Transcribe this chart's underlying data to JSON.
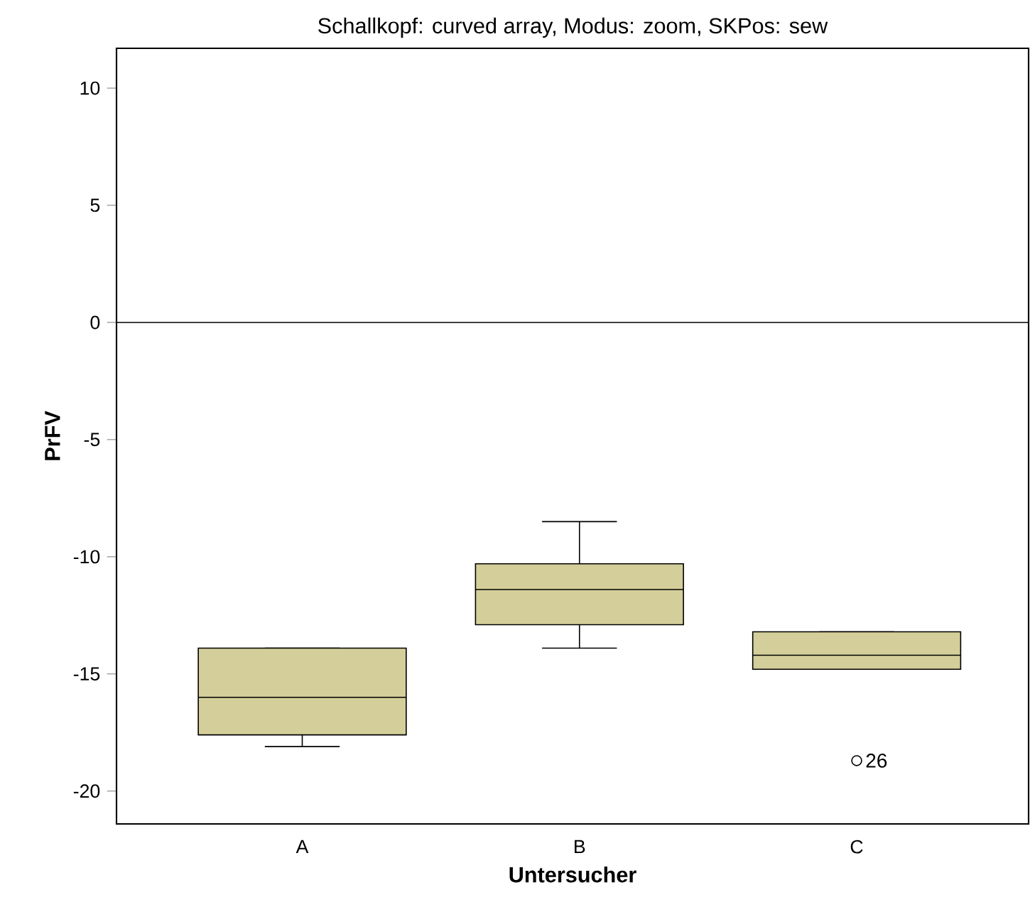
{
  "chart_data": {
    "type": "box",
    "title": "Schallkopf: curved array, Modus: zoom, SKPos: sew",
    "xlabel": "Untersucher",
    "ylabel": "PrFV",
    "categories": [
      "A",
      "B",
      "C"
    ],
    "boxes": [
      {
        "low": -18.1,
        "q1": -17.6,
        "median": -16.0,
        "q3": -13.9,
        "high": -13.9
      },
      {
        "low": -13.9,
        "q1": -12.9,
        "median": -11.4,
        "q3": -10.3,
        "high": -8.5
      },
      {
        "low": -14.8,
        "q1": -14.8,
        "median": -14.2,
        "q3": -13.2,
        "high": -13.2,
        "outliers": [
          -18.7
        ]
      }
    ],
    "color": "#d4cf9a",
    "annotations": [
      "26"
    ],
    "ref_lines": [
      {
        "axis": "y",
        "value": 0
      }
    ],
    "ylim": [
      -21.4,
      11.7
    ],
    "yticks": [
      -20,
      -15,
      -10,
      -5,
      0,
      5,
      10
    ],
    "grid": false
  }
}
